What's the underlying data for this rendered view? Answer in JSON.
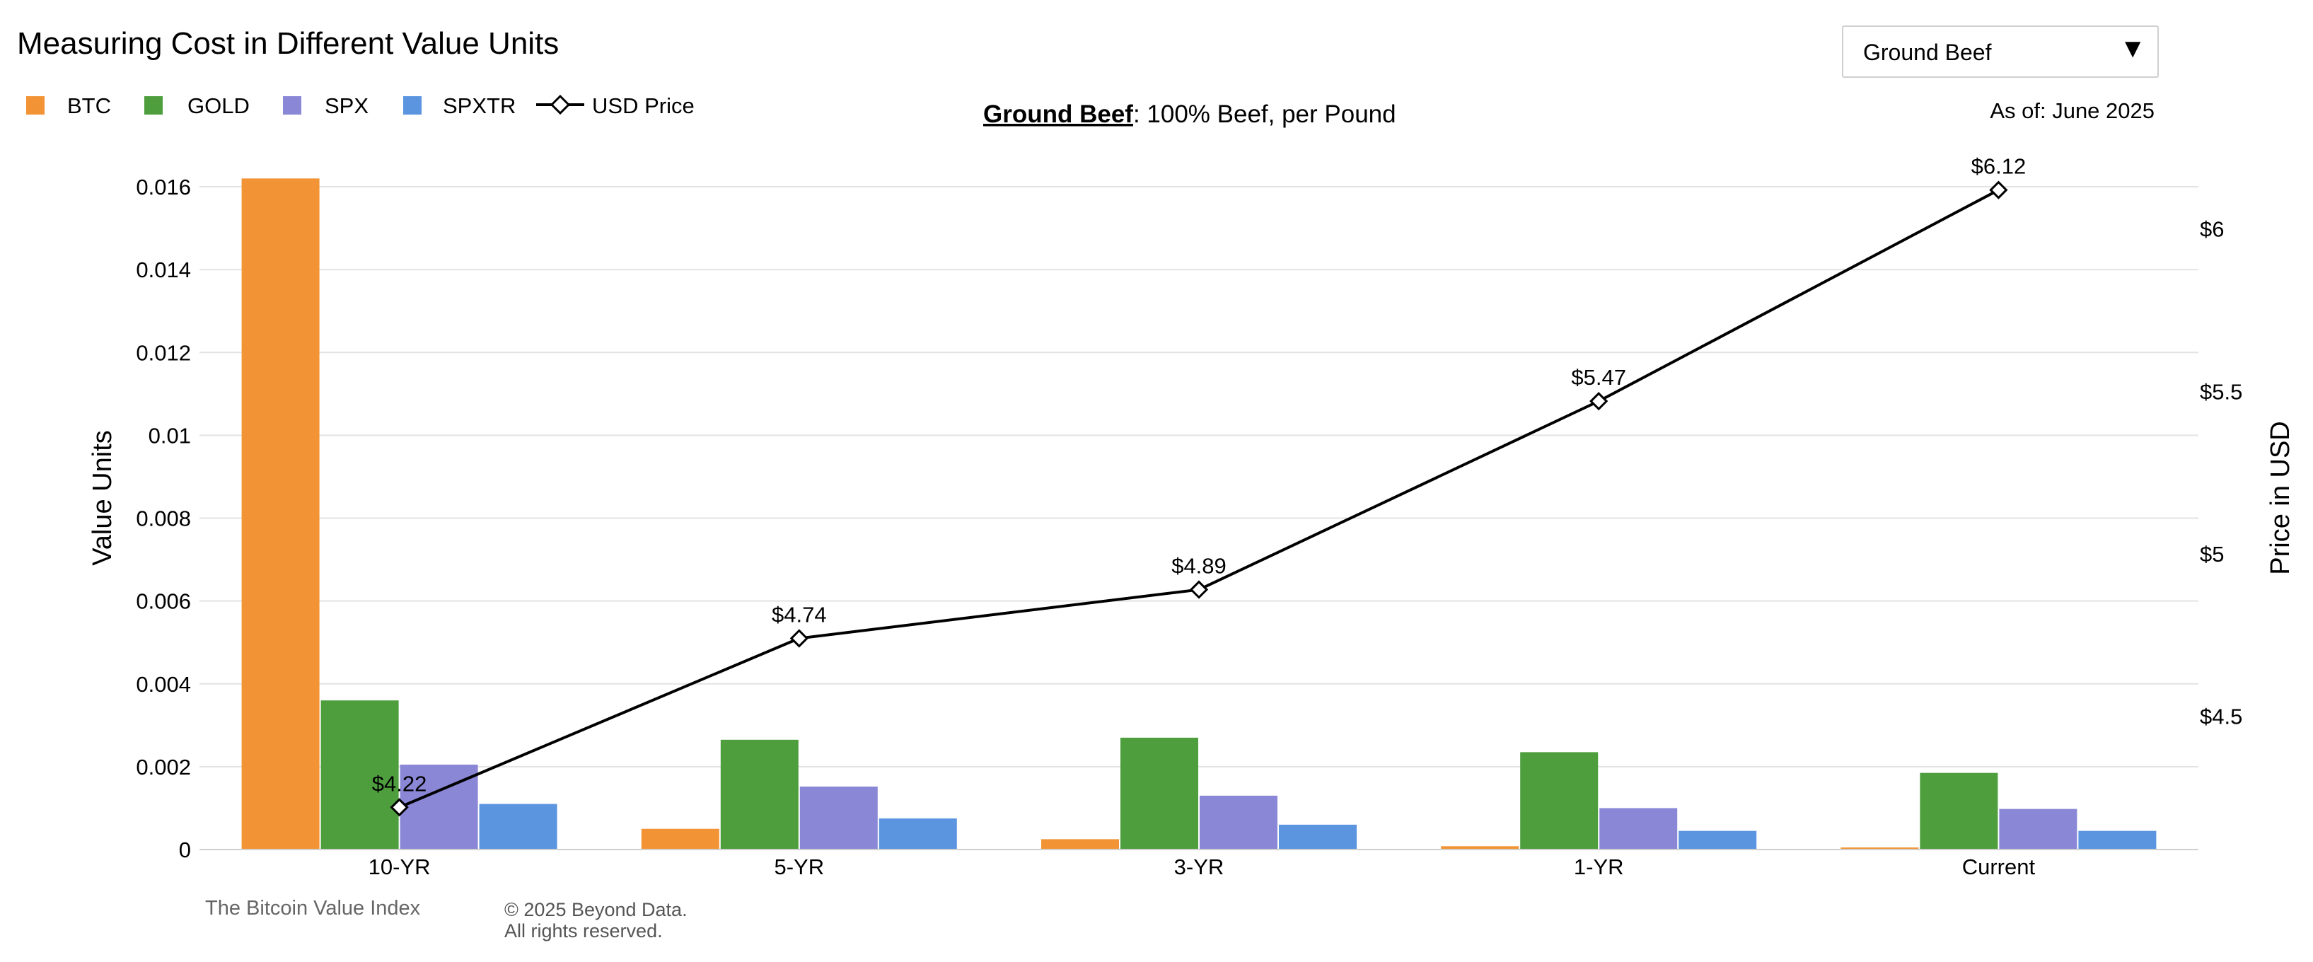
{
  "page": {
    "title": "Measuring Cost in Different Value Units",
    "subtitle_bold": "Ground Beef",
    "subtitle_rest": ": 100% Beef, per Pound",
    "as_of": "As of: June 2025",
    "footer_left": "The Bitcoin Value Index",
    "footer_copyright_line1": "© 2025 Beyond Data.",
    "footer_copyright_line2": "All rights reserved."
  },
  "selector": {
    "selected": "Ground Beef",
    "arrow_icon": "triangle-down-icon"
  },
  "legend": [
    {
      "name": "BTC",
      "color": "#F29435",
      "kind": "square"
    },
    {
      "name": "GOLD",
      "color": "#4E9E3E",
      "kind": "square"
    },
    {
      "name": "SPX",
      "color": "#8A87D6",
      "kind": "square"
    },
    {
      "name": "SPXTR",
      "color": "#5B95E0",
      "kind": "square"
    },
    {
      "name": "USD Price",
      "color": "#000000",
      "kind": "line-diamond"
    }
  ],
  "chart_data": {
    "type": "bar",
    "categories": [
      "10-YR",
      "5-YR",
      "3-YR",
      "1-YR",
      "Current"
    ],
    "series": [
      {
        "name": "BTC",
        "color": "#F29435",
        "values": [
          0.0162,
          0.0005,
          0.00025,
          8e-05,
          5e-05
        ]
      },
      {
        "name": "GOLD",
        "color": "#4E9E3E",
        "values": [
          0.0036,
          0.00265,
          0.0027,
          0.00235,
          0.00185
        ]
      },
      {
        "name": "SPX",
        "color": "#8A87D6",
        "values": [
          0.00205,
          0.00152,
          0.0013,
          0.001,
          0.00098
        ]
      },
      {
        "name": "SPXTR",
        "color": "#5B95E0",
        "values": [
          0.0011,
          0.00075,
          0.0006,
          0.00045,
          0.00045
        ]
      }
    ],
    "line_series": {
      "name": "USD Price",
      "axis": "right",
      "values": [
        4.22,
        4.74,
        4.89,
        5.47,
        6.12
      ],
      "labels": [
        "$4.22",
        "$4.74",
        "$4.89",
        "$5.47",
        "$6.12"
      ]
    },
    "ylabel": "Value Units",
    "y2label": "Price in USD",
    "ylim": [
      0,
      0.016
    ],
    "yticks": [
      0,
      0.002,
      0.004,
      0.006,
      0.008,
      0.01,
      0.012,
      0.014,
      0.016
    ],
    "ytick_labels": [
      "0",
      "0.002",
      "0.004",
      "0.006",
      "0.008",
      "0.01",
      "0.012",
      "0.014",
      "0.016"
    ],
    "y2lim": [
      4.09,
      6.13
    ],
    "y2ticks": [
      4.5,
      5,
      5.5,
      6
    ],
    "y2tick_labels": [
      "$4.5",
      "$5",
      "$5.5",
      "$6"
    ],
    "grid": true,
    "legend_position": "top-left"
  }
}
